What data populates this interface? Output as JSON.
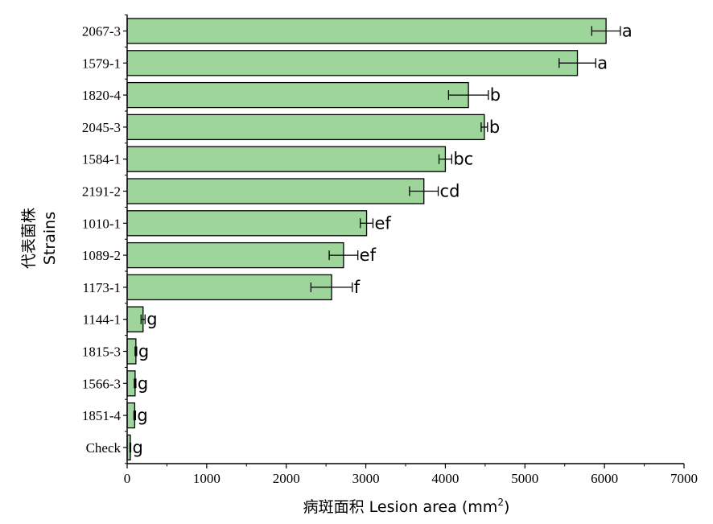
{
  "chart_data": {
    "type": "bar",
    "orientation": "horizontal",
    "categories": [
      "2067-3",
      "1579-1",
      "1820-4",
      "2045-3",
      "1584-1",
      "2191-2",
      "1010-1",
      "1089-2",
      "1173-1",
      "1144-1",
      "1815-3",
      "1566-3",
      "1851-4",
      "Check"
    ],
    "values": [
      6020,
      5660,
      4290,
      4490,
      4000,
      3730,
      3010,
      2720,
      2570,
      200,
      110,
      100,
      95,
      40
    ],
    "errors": [
      180,
      230,
      250,
      40,
      80,
      180,
      80,
      180,
      260,
      25,
      10,
      10,
      10,
      5
    ],
    "significance": [
      "a",
      "a",
      "b",
      "b",
      "bc",
      "cd",
      "ef",
      "ef",
      "f",
      "g",
      "g",
      "g",
      "g",
      "g"
    ],
    "xlim": [
      0,
      7000
    ],
    "xticks": [
      0,
      1000,
      2000,
      3000,
      4000,
      5000,
      6000,
      7000
    ],
    "xlabel_main": "病斑面积 Lesion area (mm",
    "xlabel_sup": "2",
    "xlabel_close": ")",
    "ylabel_cn": "代表菌株",
    "ylabel_en": "Strains",
    "bar_color": "#9dd59b",
    "grid": false
  }
}
